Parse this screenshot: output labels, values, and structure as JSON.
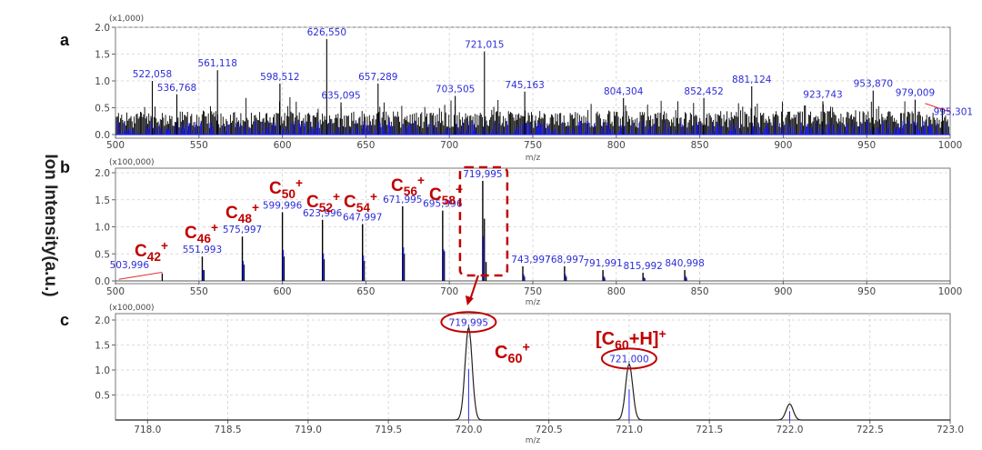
{
  "y_axis_title": "Ion Intensity(a.u.)",
  "colors": {
    "annotation": "#c00000",
    "peak_label": "#2d2dd8",
    "blue_trace": "#2222ff",
    "black_trace": "#000000",
    "base_line": "#e03030"
  },
  "chart_data": [
    {
      "panel": "a",
      "type": "bar",
      "multiplier": "(x1,000)",
      "xlabel": "m/z",
      "xlim": [
        500,
        1000
      ],
      "ylim": [
        0,
        2.0
      ],
      "xticks": [
        "500",
        "550",
        "600",
        "650",
        "700",
        "750",
        "800",
        "850",
        "900",
        "950",
        "1000"
      ],
      "yticks": [
        "0.0",
        "0.5",
        "1.0",
        "1.5",
        "2.0"
      ],
      "grid": true,
      "labeled_peaks": [
        {
          "x": 522.058,
          "y": 1.0,
          "label": "522,058"
        },
        {
          "x": 536.768,
          "y": 0.75,
          "label": "536,768"
        },
        {
          "x": 561.118,
          "y": 1.2,
          "label": "561,118"
        },
        {
          "x": 598.512,
          "y": 0.95,
          "label": "598,512"
        },
        {
          "x": 626.55,
          "y": 1.78,
          "label": "626,550"
        },
        {
          "x": 635.095,
          "y": 0.6,
          "label": "635,095"
        },
        {
          "x": 657.289,
          "y": 0.95,
          "label": "657,289"
        },
        {
          "x": 703.505,
          "y": 0.72,
          "label": "703,505"
        },
        {
          "x": 721.015,
          "y": 1.55,
          "label": "721,015"
        },
        {
          "x": 745.163,
          "y": 0.8,
          "label": "745,163"
        },
        {
          "x": 804.304,
          "y": 0.68,
          "label": "804,304"
        },
        {
          "x": 852.452,
          "y": 0.68,
          "label": "852,452"
        },
        {
          "x": 881.124,
          "y": 0.9,
          "label": "881,124"
        },
        {
          "x": 923.743,
          "y": 0.62,
          "label": "923,743"
        },
        {
          "x": 953.87,
          "y": 0.82,
          "label": "953,870"
        },
        {
          "x": 979.009,
          "y": 0.65,
          "label": "979,009"
        },
        {
          "x": 995.301,
          "y": 0.5,
          "label": "995,301"
        }
      ]
    },
    {
      "panel": "b",
      "type": "bar",
      "multiplier": "(x100,000)",
      "xlabel": "m/z",
      "xlim": [
        500,
        1000
      ],
      "ylim": [
        0,
        2.0
      ],
      "xticks": [
        "500",
        "550",
        "600",
        "650",
        "700",
        "750",
        "800",
        "850",
        "900",
        "950",
        "1000"
      ],
      "yticks": [
        "0.0",
        "0.5",
        "1.0",
        "1.5",
        "2.0"
      ],
      "grid": true,
      "labeled_peaks": [
        {
          "x": 503.996,
          "y": 0.18,
          "label": "503,996",
          "annotation": "C42+"
        },
        {
          "x": 551.993,
          "y": 0.45,
          "label": "551,993",
          "annotation": "C46+"
        },
        {
          "x": 575.997,
          "y": 0.82,
          "label": "575,997",
          "annotation": "C48+"
        },
        {
          "x": 599.996,
          "y": 1.27,
          "label": "599,996",
          "annotation": "C50+"
        },
        {
          "x": 623.996,
          "y": 1.13,
          "label": "623,996",
          "annotation": "C52+"
        },
        {
          "x": 647.997,
          "y": 1.05,
          "label": "647,997",
          "annotation": "C54+"
        },
        {
          "x": 671.995,
          "y": 1.38,
          "label": "671,995",
          "annotation": "C56+"
        },
        {
          "x": 695.996,
          "y": 1.3,
          "label": "695,996",
          "annotation": "C58+"
        },
        {
          "x": 719.995,
          "y": 1.85,
          "label": "719,995"
        },
        {
          "x": 743.997,
          "y": 0.27,
          "label": "743,997"
        },
        {
          "x": 768.997,
          "y": 0.27,
          "label": "768,997"
        },
        {
          "x": 791.991,
          "y": 0.2,
          "label": "791,991"
        },
        {
          "x": 815.992,
          "y": 0.15,
          "label": "815,992"
        },
        {
          "x": 840.998,
          "y": 0.2,
          "label": "840,998"
        }
      ],
      "isotope_peaks": [
        {
          "x": 528.0,
          "y": 0.14
        },
        {
          "x": 553.0,
          "y": 0.2
        },
        {
          "x": 577.0,
          "y": 0.3
        },
        {
          "x": 601.0,
          "y": 0.45
        },
        {
          "x": 625.0,
          "y": 0.4
        },
        {
          "x": 649.0,
          "y": 0.37
        },
        {
          "x": 673.0,
          "y": 0.5
        },
        {
          "x": 697.0,
          "y": 0.55
        },
        {
          "x": 721.0,
          "y": 1.15
        },
        {
          "x": 722.0,
          "y": 0.35
        },
        {
          "x": 745.0,
          "y": 0.08
        },
        {
          "x": 770.0,
          "y": 0.08
        },
        {
          "x": 793.0,
          "y": 0.06
        },
        {
          "x": 817.0,
          "y": 0.05
        },
        {
          "x": 842.0,
          "y": 0.06
        }
      ]
    },
    {
      "panel": "c",
      "type": "line",
      "multiplier": "(x100,000)",
      "xlabel": "m/z",
      "xlim": [
        717.8,
        723.0
      ],
      "ylim": [
        0,
        2.0
      ],
      "xticks": [
        "718.0",
        "718.5",
        "719.0",
        "719.5",
        "720.0",
        "720.5",
        "721.0",
        "721.5",
        "722.0",
        "722.5",
        "723.0"
      ],
      "yticks": [
        "0.5",
        "1.0",
        "1.5",
        "2.0"
      ],
      "grid": true,
      "peaks": [
        {
          "x": 720.0,
          "y": 1.85,
          "label": "719,995",
          "annotation": "C60+"
        },
        {
          "x": 721.0,
          "y": 1.12,
          "label": "721,000",
          "annotation": "[C60+H]+"
        },
        {
          "x": 722.0,
          "y": 0.32
        }
      ]
    }
  ]
}
